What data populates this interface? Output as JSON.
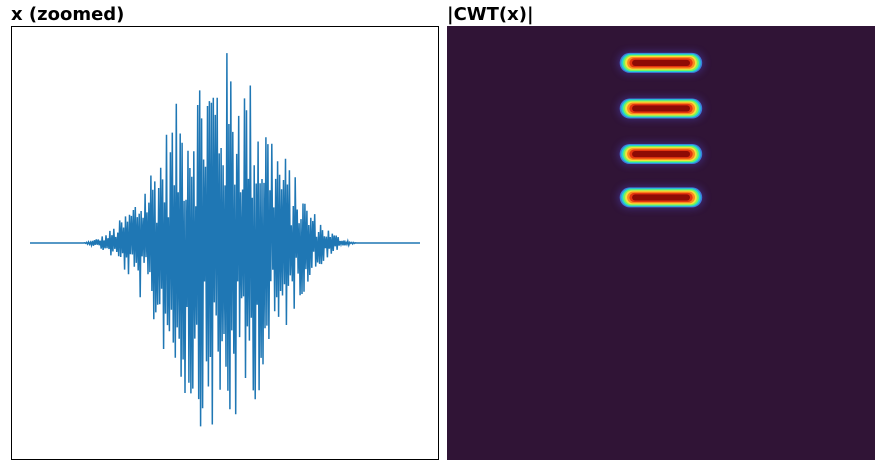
{
  "chart_data": [
    {
      "type": "line",
      "title": "x (zoomed)",
      "line_color": "#1f77b4",
      "x_range": [
        0,
        400
      ],
      "y_range": [
        -1.05,
        1.05
      ],
      "envelope": {
        "start": 55,
        "end": 335,
        "center": 195,
        "half_width": 140,
        "peak_amplitude": 1.0
      },
      "flat_segments": [
        [
          0,
          55
        ],
        [
          335,
          400
        ]
      ],
      "grid": false,
      "ticks": false
    },
    {
      "type": "heatmap",
      "title": "|CWT(x)|",
      "colormap": "turbo",
      "background_color": "#301436",
      "x_range": [
        0,
        1
      ],
      "y_range": [
        0,
        1
      ],
      "blobs": [
        {
          "x_center": 0.5,
          "y_center": 0.085,
          "width": 0.2,
          "height": 0.05,
          "intensity": 1.0
        },
        {
          "x_center": 0.5,
          "y_center": 0.19,
          "width": 0.2,
          "height": 0.05,
          "intensity": 1.0
        },
        {
          "x_center": 0.5,
          "y_center": 0.295,
          "width": 0.2,
          "height": 0.05,
          "intensity": 1.0
        },
        {
          "x_center": 0.5,
          "y_center": 0.395,
          "width": 0.2,
          "height": 0.05,
          "intensity": 1.0
        }
      ],
      "grid": false,
      "ticks": false
    }
  ]
}
